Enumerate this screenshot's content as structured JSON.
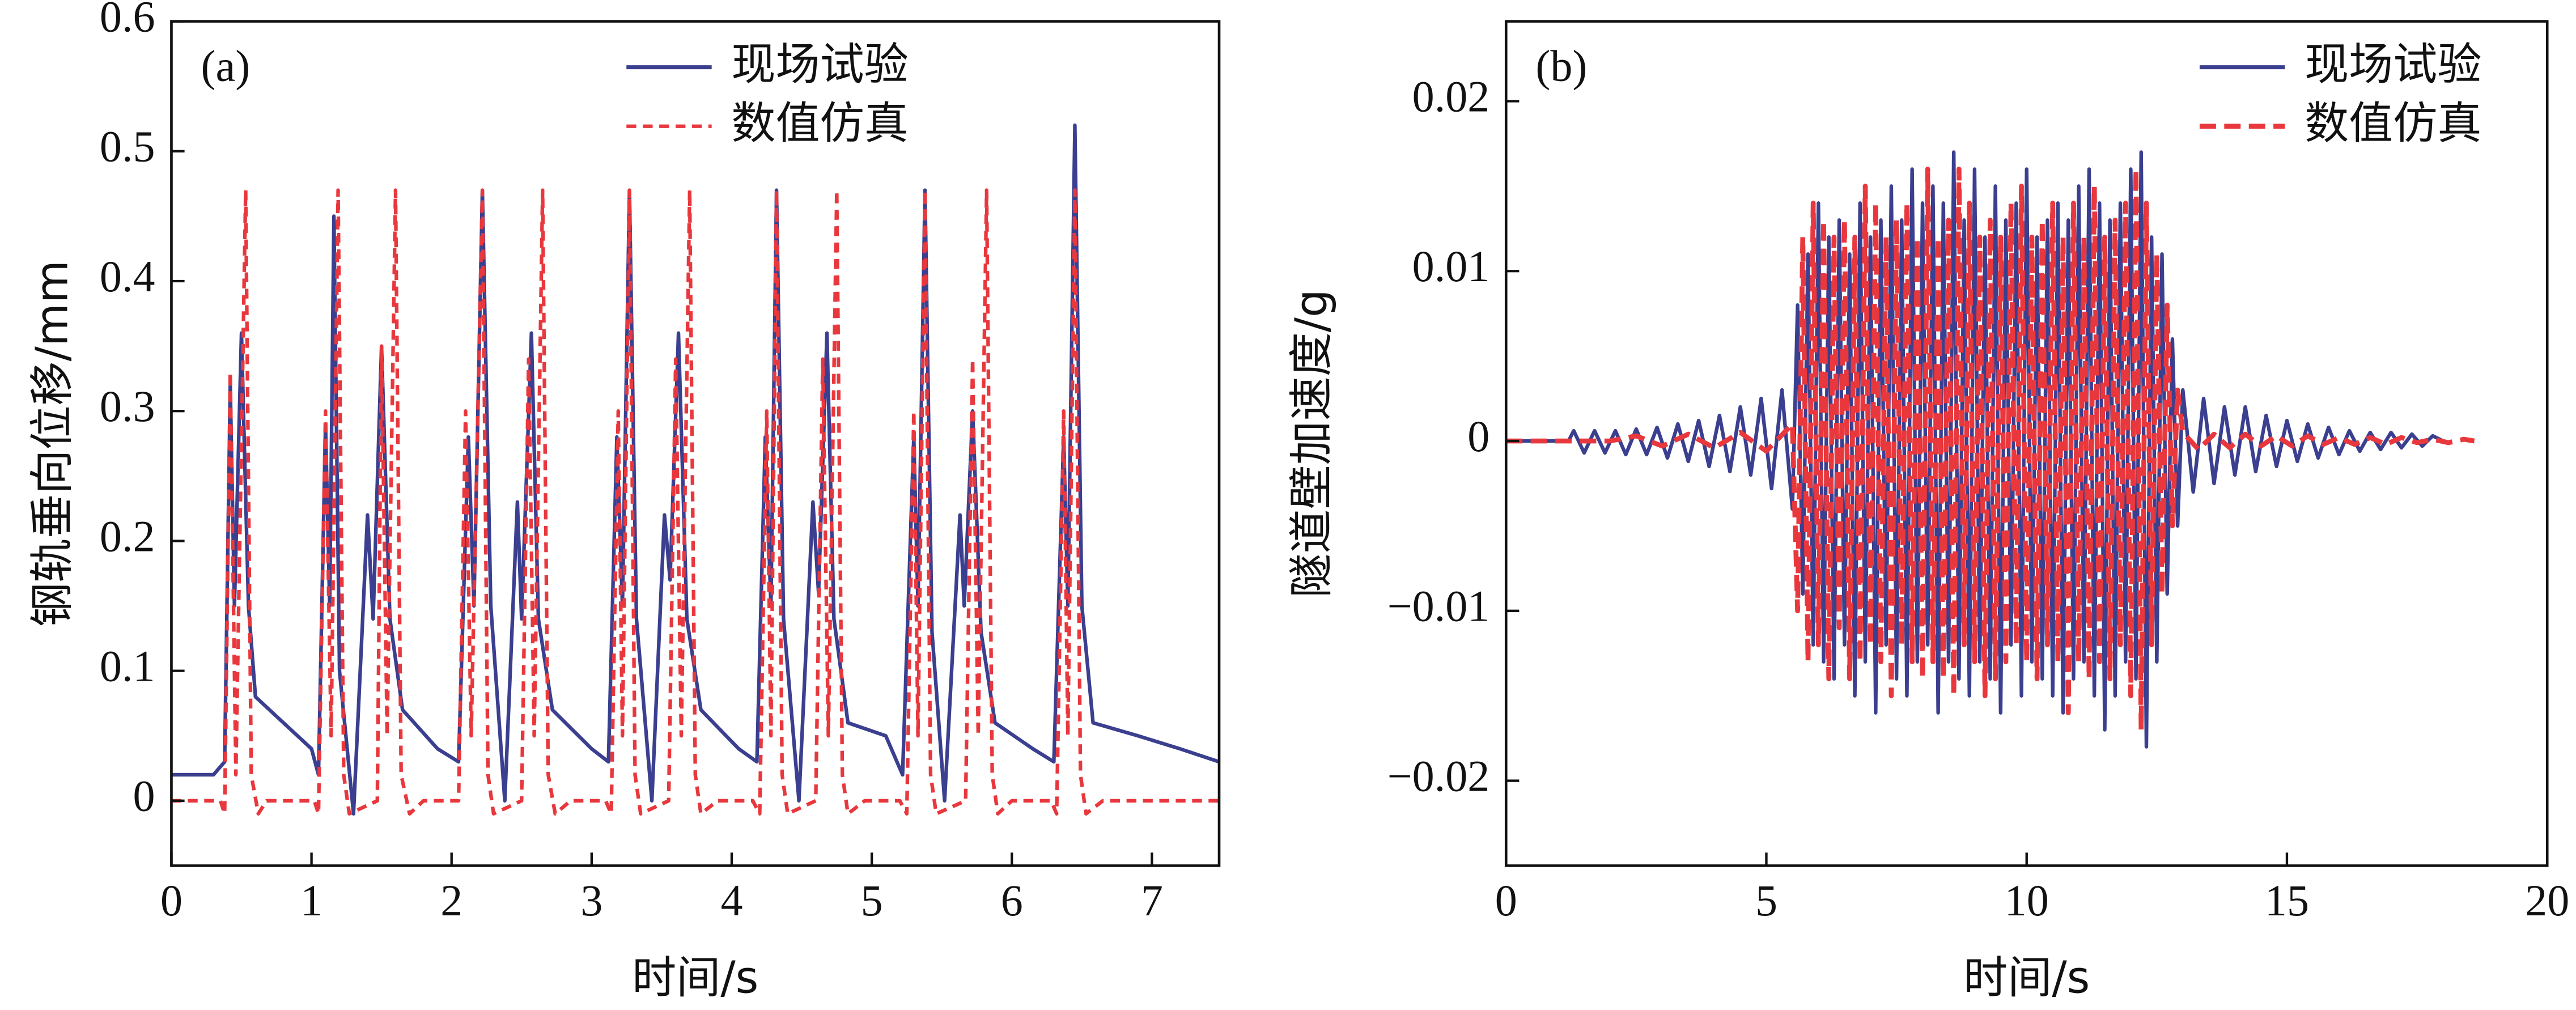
{
  "chart_data": [
    {
      "type": "line",
      "annotation": "(a)",
      "xlabel": "时间/s",
      "ylabel": "钢轨垂向位移/mm",
      "xlim": [
        0,
        7.48
      ],
      "ylim": [
        -0.05,
        0.6
      ],
      "xticks": [
        0,
        1,
        2,
        3,
        4,
        5,
        6,
        7
      ],
      "yticks": [
        0,
        0.1,
        0.2,
        0.3,
        0.4,
        0.5,
        0.6
      ],
      "legend": "upper center",
      "series": [
        {
          "name": "现场试验",
          "color": "#3b3f8f",
          "linestyle": "solid",
          "x": [
            0,
            0.3,
            0.38,
            0.42,
            0.45,
            0.5,
            0.55,
            0.6,
            0.8,
            1.0,
            1.05,
            1.1,
            1.13,
            1.16,
            1.2,
            1.3,
            1.4,
            1.44,
            1.5,
            1.56,
            1.65,
            1.9,
            2.05,
            2.12,
            2.16,
            2.22,
            2.28,
            2.38,
            2.47,
            2.5,
            2.57,
            2.62,
            2.72,
            3.0,
            3.12,
            3.18,
            3.22,
            3.27,
            3.32,
            3.43,
            3.52,
            3.56,
            3.62,
            3.68,
            3.78,
            4.05,
            4.18,
            4.24,
            4.28,
            4.32,
            4.37,
            4.48,
            4.58,
            4.62,
            4.68,
            4.73,
            4.83,
            5.1,
            5.22,
            5.3,
            5.33,
            5.38,
            5.43,
            5.52,
            5.63,
            5.66,
            5.72,
            5.78,
            5.88,
            6.15,
            6.3,
            6.37,
            6.4,
            6.45,
            6.5,
            6.58,
            6.9,
            7.2,
            7.48
          ],
          "values": [
            0.02,
            0.02,
            0.03,
            0.32,
            0.15,
            0.36,
            0.15,
            0.08,
            0.06,
            0.04,
            0.02,
            0.29,
            0.15,
            0.45,
            0.1,
            -0.01,
            0.22,
            0.14,
            0.35,
            0.14,
            0.07,
            0.04,
            0.03,
            0.28,
            0.15,
            0.47,
            0.15,
            0.0,
            0.23,
            0.14,
            0.36,
            0.14,
            0.07,
            0.04,
            0.03,
            0.28,
            0.15,
            0.47,
            0.14,
            0.0,
            0.22,
            0.17,
            0.36,
            0.14,
            0.07,
            0.04,
            0.03,
            0.28,
            0.15,
            0.47,
            0.14,
            0.0,
            0.23,
            0.16,
            0.36,
            0.14,
            0.06,
            0.05,
            0.02,
            0.28,
            0.15,
            0.47,
            0.13,
            0.0,
            0.22,
            0.15,
            0.3,
            0.13,
            0.06,
            0.04,
            0.03,
            0.28,
            0.15,
            0.52,
            0.15,
            0.06,
            0.05,
            0.04,
            0.03
          ]
        },
        {
          "name": "数值仿真",
          "color": "#e8383d",
          "linestyle": "dashed",
          "x": [
            0,
            0.35,
            0.38,
            0.42,
            0.46,
            0.53,
            0.57,
            0.62,
            0.68,
            1.02,
            1.05,
            1.1,
            1.14,
            1.19,
            1.23,
            1.27,
            1.47,
            1.5,
            1.54,
            1.6,
            1.64,
            1.7,
            1.8,
            2.05,
            2.1,
            2.14,
            2.22,
            2.26,
            2.3,
            2.5,
            2.55,
            2.59,
            2.65,
            2.69,
            2.74,
            2.85,
            3.1,
            3.14,
            3.19,
            3.22,
            3.27,
            3.31,
            3.35,
            3.55,
            3.6,
            3.64,
            3.7,
            3.74,
            3.78,
            3.9,
            4.15,
            4.2,
            4.25,
            4.28,
            4.32,
            4.36,
            4.4,
            4.6,
            4.65,
            4.69,
            4.75,
            4.79,
            4.83,
            4.95,
            5.2,
            5.25,
            5.3,
            5.33,
            5.38,
            5.42,
            5.46,
            5.67,
            5.72,
            5.76,
            5.82,
            5.86,
            5.9,
            6.0,
            6.28,
            6.32,
            6.37,
            6.4,
            6.45,
            6.49,
            6.53,
            6.65,
            7.48
          ],
          "values": [
            0,
            0,
            -0.01,
            0.33,
            0.02,
            0.47,
            0.02,
            -0.01,
            0,
            0,
            -0.01,
            0.3,
            0.05,
            0.47,
            0.02,
            -0.01,
            0,
            0.35,
            0.05,
            0.47,
            0.02,
            -0.01,
            0,
            0,
            0.3,
            0.05,
            0.47,
            0.02,
            -0.01,
            0,
            0.34,
            0.05,
            0.47,
            0.02,
            -0.01,
            0,
            0,
            -0.01,
            0.3,
            0.05,
            0.47,
            0.02,
            -0.01,
            0,
            0.34,
            0.05,
            0.47,
            0.02,
            -0.01,
            0,
            0,
            -0.01,
            0.3,
            0.05,
            0.47,
            0.02,
            -0.01,
            0,
            0.34,
            0.05,
            0.47,
            0.02,
            -0.01,
            0,
            0,
            -0.01,
            0.3,
            0.05,
            0.47,
            0.02,
            -0.01,
            0,
            0.34,
            0.05,
            0.47,
            0.02,
            -0.01,
            0,
            0,
            -0.01,
            0.3,
            0.05,
            0.47,
            0.02,
            -0.01,
            0,
            0
          ]
        }
      ]
    },
    {
      "type": "line",
      "annotation": "(b)",
      "xlabel": "时间/s",
      "ylabel": "隧道壁加速度/g",
      "xlim": [
        0,
        20
      ],
      "ylim": [
        -0.025,
        0.0247
      ],
      "xticks": [
        0,
        5,
        10,
        15,
        20
      ],
      "yticks": [
        {
          "value": -0.02,
          "label": "−0.02"
        },
        {
          "value": -0.01,
          "label": "−0.01"
        },
        0,
        0.01,
        0.02
      ],
      "legend": "upper right",
      "series": [
        {
          "name": "现场试验",
          "color": "#3b3f8f",
          "linestyle": "solid",
          "x": [
            0,
            1.2,
            1.3,
            1.5,
            1.7,
            1.9,
            2.1,
            2.3,
            2.5,
            2.7,
            2.9,
            3.1,
            3.3,
            3.5,
            3.7,
            3.9,
            4.1,
            4.3,
            4.5,
            4.7,
            4.9,
            5.1,
            5.3,
            5.5,
            5.6,
            5.7,
            5.8,
            5.9,
            6.0,
            6.1,
            6.2,
            6.3,
            6.4,
            6.5,
            6.6,
            6.7,
            6.8,
            6.9,
            7.0,
            7.1,
            7.2,
            7.3,
            7.4,
            7.5,
            7.6,
            7.7,
            7.8,
            7.9,
            8.0,
            8.1,
            8.2,
            8.3,
            8.4,
            8.5,
            8.6,
            8.7,
            8.8,
            8.9,
            9.0,
            9.1,
            9.2,
            9.3,
            9.4,
            9.5,
            9.6,
            9.7,
            9.8,
            9.9,
            10.0,
            10.1,
            10.2,
            10.3,
            10.4,
            10.5,
            10.6,
            10.7,
            10.8,
            10.9,
            11.0,
            11.1,
            11.2,
            11.3,
            11.4,
            11.5,
            11.6,
            11.7,
            11.8,
            11.9,
            12.0,
            12.1,
            12.2,
            12.3,
            12.4,
            12.5,
            12.6,
            12.7,
            12.8,
            12.9,
            13.0,
            13.2,
            13.4,
            13.6,
            13.8,
            14.0,
            14.2,
            14.4,
            14.6,
            14.8,
            15.0,
            15.2,
            15.4,
            15.6,
            15.8,
            16.0,
            16.2,
            16.4,
            16.6,
            16.8,
            17.0,
            17.2,
            17.4,
            17.6,
            17.8,
            18.0
          ],
          "values": [
            0,
            0,
            0.0006,
            -0.0007,
            0.0006,
            -0.0007,
            0.0006,
            -0.0008,
            0.0007,
            -0.0008,
            0.0008,
            -0.001,
            0.001,
            -0.0012,
            0.0012,
            -0.0015,
            0.0015,
            -0.0018,
            0.002,
            -0.002,
            0.0025,
            -0.0028,
            0.003,
            -0.004,
            0.008,
            -0.009,
            0.011,
            -0.012,
            0.014,
            -0.013,
            0.012,
            -0.014,
            0.013,
            -0.012,
            0.011,
            -0.015,
            0.014,
            -0.013,
            0.012,
            -0.016,
            0.013,
            -0.012,
            0.015,
            -0.014,
            0.013,
            -0.015,
            0.016,
            -0.013,
            0.014,
            -0.012,
            0.015,
            -0.016,
            0.014,
            -0.013,
            0.017,
            -0.014,
            0.013,
            -0.015,
            0.016,
            -0.013,
            0.012,
            -0.014,
            0.015,
            -0.016,
            0.013,
            -0.012,
            0.014,
            -0.015,
            0.016,
            -0.013,
            0.012,
            -0.014,
            0.013,
            -0.015,
            0.014,
            -0.016,
            0.013,
            -0.014,
            0.015,
            -0.013,
            0.016,
            -0.015,
            0.014,
            -0.017,
            0.013,
            -0.015,
            0.014,
            -0.013,
            0.016,
            -0.014,
            0.017,
            -0.018,
            0.012,
            -0.013,
            0.011,
            -0.009,
            0.006,
            -0.005,
            0.003,
            -0.003,
            0.0025,
            -0.0025,
            0.002,
            -0.002,
            0.002,
            -0.0018,
            0.0015,
            -0.0015,
            0.0012,
            -0.0012,
            0.001,
            -0.001,
            0.0008,
            -0.0008,
            0.0006,
            -0.0006,
            0.0005,
            -0.0005,
            0.0005,
            -0.0004,
            0.0004,
            -0.0003,
            0.0003,
            0
          ]
        },
        {
          "name": "数值仿真",
          "color": "#e8383d",
          "linestyle": "dashed",
          "x": [
            0,
            2,
            2.5,
            3,
            3.5,
            4,
            4.5,
            5,
            5.5,
            5.6,
            5.7,
            5.8,
            5.9,
            6.0,
            6.1,
            6.2,
            6.3,
            6.4,
            6.5,
            6.6,
            6.7,
            6.8,
            6.9,
            7.0,
            7.1,
            7.2,
            7.3,
            7.4,
            7.5,
            7.6,
            7.7,
            7.8,
            7.9,
            8.0,
            8.1,
            8.2,
            8.3,
            8.4,
            8.5,
            8.6,
            8.7,
            8.8,
            8.9,
            9.0,
            9.1,
            9.2,
            9.3,
            9.4,
            9.5,
            9.6,
            9.7,
            9.8,
            9.9,
            10.0,
            10.1,
            10.2,
            10.3,
            10.4,
            10.5,
            10.6,
            10.7,
            10.8,
            10.9,
            11.0,
            11.1,
            11.2,
            11.3,
            11.4,
            11.5,
            11.6,
            11.7,
            11.8,
            11.9,
            12.0,
            12.1,
            12.2,
            12.3,
            12.4,
            12.5,
            12.6,
            12.7,
            12.8,
            12.9,
            13.0,
            13.3,
            13.6,
            13.9,
            14.2,
            14.5,
            14.8,
            15.1,
            15.4,
            15.7,
            16.0,
            16.3,
            16.6,
            16.9,
            17.2,
            17.5,
            17.8,
            18.1,
            18.4,
            18.6
          ],
          "values": [
            0,
            0,
            0.0003,
            -0.0003,
            0.0004,
            -0.0004,
            0.0005,
            -0.0006,
            0.001,
            -0.01,
            0.012,
            -0.013,
            0.014,
            -0.012,
            0.013,
            -0.014,
            0.012,
            -0.011,
            0.013,
            -0.014,
            0.012,
            -0.013,
            0.015,
            -0.012,
            0.014,
            -0.013,
            0.012,
            -0.015,
            0.013,
            -0.012,
            0.014,
            -0.013,
            0.012,
            -0.014,
            0.016,
            -0.013,
            0.012,
            -0.014,
            0.013,
            -0.015,
            0.016,
            -0.012,
            0.014,
            -0.013,
            0.012,
            -0.015,
            0.013,
            -0.014,
            0.012,
            -0.013,
            0.014,
            -0.012,
            0.015,
            -0.013,
            0.012,
            -0.014,
            0.013,
            -0.012,
            0.014,
            -0.013,
            0.012,
            -0.016,
            0.014,
            -0.013,
            0.012,
            -0.014,
            0.015,
            -0.013,
            0.012,
            -0.014,
            0.013,
            -0.012,
            0.014,
            -0.015,
            0.016,
            -0.017,
            0.014,
            -0.012,
            0.011,
            -0.009,
            0.008,
            -0.005,
            0.003,
            0.0005,
            -0.0005,
            0.0004,
            -0.0004,
            0.0004,
            -0.0003,
            0.0003,
            -0.0003,
            0.0003,
            -0.0002,
            0.0002,
            -0.0002,
            0.0002,
            -0.0002,
            0.0002,
            -0.0001,
            0.0001,
            -0.0001,
            0.0001,
            0
          ]
        }
      ]
    }
  ]
}
